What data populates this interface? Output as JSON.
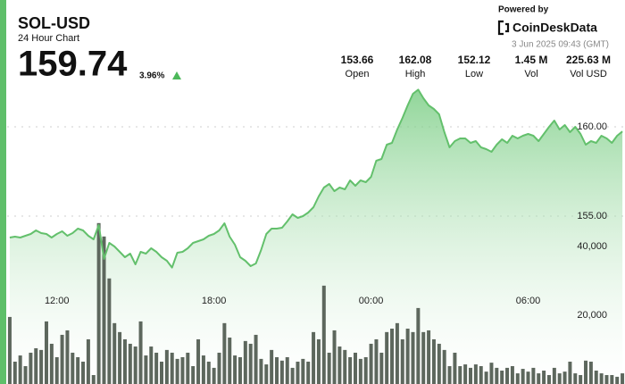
{
  "header": {
    "title": "SOL-USD",
    "subtitle": "24 Hour Chart",
    "price": "159.74",
    "change": "3.96%",
    "powered_by": "Powered by",
    "brand": "CoinDeskData",
    "timestamp": "3 Jun 2025 09:43 (GMT)"
  },
  "stats": [
    {
      "value": "153.66",
      "label": "Open"
    },
    {
      "value": "162.08",
      "label": "High"
    },
    {
      "value": "152.12",
      "label": "Low"
    },
    {
      "value": "1.45 M",
      "label": "Vol"
    },
    {
      "value": "225.63 M",
      "label": "Vol USD"
    }
  ],
  "chart_data": {
    "type": "area",
    "x": [
      10.2,
      10.4,
      10.6,
      10.8,
      11,
      11.2,
      11.4,
      11.6,
      11.8,
      12,
      12.2,
      12.4,
      12.6,
      12.8,
      13,
      13.2,
      13.4,
      13.6,
      13.8,
      14,
      14.2,
      14.4,
      14.6,
      14.8,
      15,
      15.2,
      15.4,
      15.6,
      15.8,
      16,
      16.2,
      16.4,
      16.6,
      16.8,
      17,
      17.2,
      17.4,
      17.6,
      17.8,
      18,
      18.2,
      18.4,
      18.6,
      18.8,
      19,
      19.2,
      19.4,
      19.6,
      19.8,
      20,
      20.2,
      20.4,
      20.6,
      20.8,
      21,
      21.2,
      21.4,
      21.6,
      21.8,
      22,
      22.2,
      22.4,
      22.6,
      22.8,
      23,
      23.2,
      23.4,
      23.6,
      23.8,
      24,
      24.2,
      24.4,
      24.6,
      24.8,
      25,
      25.2,
      25.4,
      25.6,
      25.8,
      26,
      26.2,
      26.4,
      26.6,
      26.8,
      27,
      27.2,
      27.4,
      27.6,
      27.8,
      28,
      28.2,
      28.4,
      28.6,
      28.8,
      29,
      29.2,
      29.4,
      29.6,
      29.8,
      30,
      30.2,
      30.4,
      30.6,
      30.8,
      31,
      31.2,
      31.4,
      31.6,
      31.8,
      32,
      32.2,
      32.4,
      32.6,
      32.8,
      33,
      33.2,
      33.4,
      33.6
    ],
    "xlim": [
      10.1,
      33.7
    ],
    "xticks": [
      {
        "value": 12,
        "label": "12:00"
      },
      {
        "value": 18,
        "label": "18:00"
      },
      {
        "value": 24,
        "label": "00:00"
      },
      {
        "value": 30,
        "label": "06:00"
      }
    ],
    "ylim": [
      145.6,
      163.1
    ],
    "yticks": [
      {
        "value": 155,
        "label": "155.00"
      },
      {
        "value": 160,
        "label": "160.00"
      }
    ],
    "y2lim": [
      0,
      90900
    ],
    "y2ticks": [
      {
        "value": 20000,
        "label": "20,000"
      },
      {
        "value": 40000,
        "label": "40,000"
      }
    ],
    "grid": true,
    "series": [
      {
        "type": "bar",
        "axis": "y2",
        "color": "#5d675d",
        "values": [
          19500,
          6500,
          8300,
          5200,
          9100,
          10400,
          9900,
          18200,
          11700,
          7800,
          14300,
          15600,
          9100,
          7800,
          6500,
          13000,
          2600,
          46800,
          42900,
          30700,
          17700,
          15100,
          13000,
          11700,
          10900,
          18200,
          8300,
          10900,
          9100,
          6500,
          9900,
          9100,
          7300,
          7800,
          9100,
          5200,
          13000,
          8300,
          6500,
          4700,
          9100,
          17700,
          13500,
          8300,
          7800,
          12500,
          11700,
          14300,
          7300,
          5700,
          9900,
          7800,
          6800,
          7800,
          4700,
          6500,
          7300,
          6500,
          15100,
          13000,
          28600,
          9100,
          15600,
          10900,
          9900,
          7800,
          9100,
          7300,
          7800,
          11700,
          13000,
          9100,
          15100,
          16100,
          17700,
          13000,
          16100,
          15100,
          22100,
          15100,
          15600,
          13000,
          11700,
          9900,
          5200,
          9100,
          5200,
          5700,
          4700,
          5700,
          5200,
          3600,
          6200,
          4700,
          3900,
          4700,
          5200,
          3100,
          4400,
          3600,
          4700,
          3100,
          3900,
          2600,
          4700,
          3100,
          3600,
          6500,
          3100,
          2600,
          6800,
          6500,
          3900,
          3100,
          2600,
          2600,
          2100,
          3100
        ]
      },
      {
        "type": "area",
        "axis": "y",
        "color": "#63c06c",
        "values": [
          153.8,
          153.85,
          153.8,
          153.9,
          154,
          154.2,
          154.05,
          154,
          153.8,
          154,
          154.15,
          153.9,
          154.05,
          154.3,
          154.2,
          153.9,
          153.7,
          154.5,
          152.6,
          153.5,
          153.3,
          153,
          152.7,
          152.9,
          152.3,
          153,
          152.9,
          153.2,
          153,
          152.7,
          152.5,
          152.12,
          152.95,
          153,
          153.2,
          153.5,
          153.6,
          153.7,
          153.9,
          154,
          154.2,
          154.6,
          153.85,
          153.4,
          152.7,
          152.5,
          152.2,
          152.35,
          153.1,
          154,
          154.3,
          154.3,
          154.35,
          154.7,
          155.1,
          154.9,
          155,
          155.2,
          155.5,
          156.1,
          156.6,
          156.8,
          156.4,
          156.6,
          156.5,
          157,
          156.7,
          157,
          156.9,
          157.2,
          158.1,
          158.2,
          159,
          159.1,
          159.85,
          160.5,
          161.2,
          161.85,
          162.08,
          161.6,
          161.2,
          161,
          160.7,
          159.7,
          158.85,
          159.2,
          159.35,
          159.35,
          159.1,
          159.2,
          158.85,
          158.75,
          158.6,
          159,
          159.3,
          159.1,
          159.5,
          159.35,
          159.5,
          159.6,
          159.5,
          159.2,
          159.6,
          160,
          160.35,
          159.85,
          160.1,
          159.7,
          160,
          159.6,
          159,
          159.2,
          159.1,
          159.5,
          159.35,
          159.1,
          159.5,
          159.74
        ]
      }
    ]
  }
}
